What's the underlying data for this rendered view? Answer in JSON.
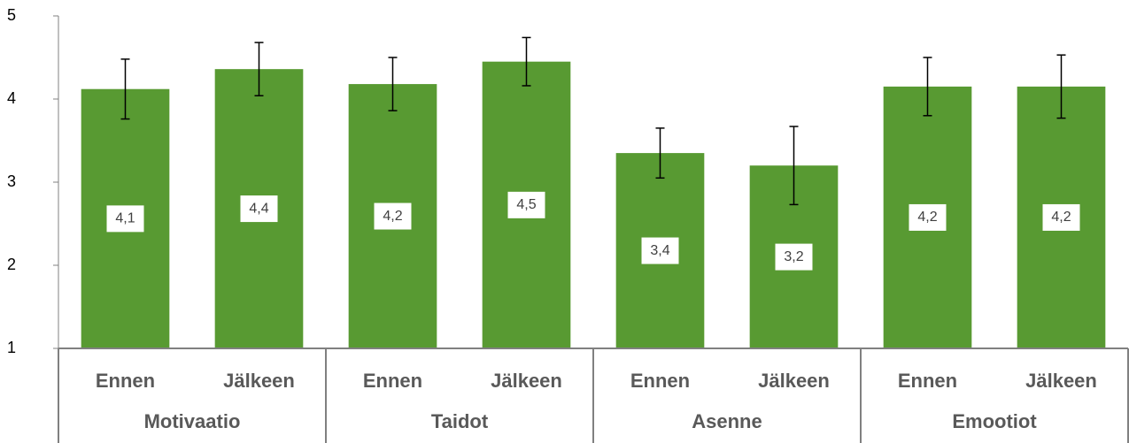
{
  "chart_data": {
    "type": "bar",
    "categories": [
      "Ennen",
      "Jälkeen",
      "Ennen",
      "Jälkeen",
      "Ennen",
      "Jälkeen",
      "Ennen",
      "Jälkeen"
    ],
    "groups": [
      "Motivaatio",
      "Taidot",
      "Asenne",
      "Emootiot"
    ],
    "values": [
      4.12,
      4.36,
      4.18,
      4.45,
      3.35,
      3.2,
      4.15,
      4.15
    ],
    "value_labels": [
      "4,1",
      "4,4",
      "4,2",
      "4,5",
      "3,4",
      "3,2",
      "4,2",
      "4,2"
    ],
    "errors": [
      0.36,
      0.32,
      0.32,
      0.29,
      0.3,
      0.47,
      0.35,
      0.38
    ],
    "color": "#589a32",
    "ylim": [
      1,
      5
    ],
    "yticks": [
      1,
      2,
      3,
      4,
      5
    ]
  }
}
